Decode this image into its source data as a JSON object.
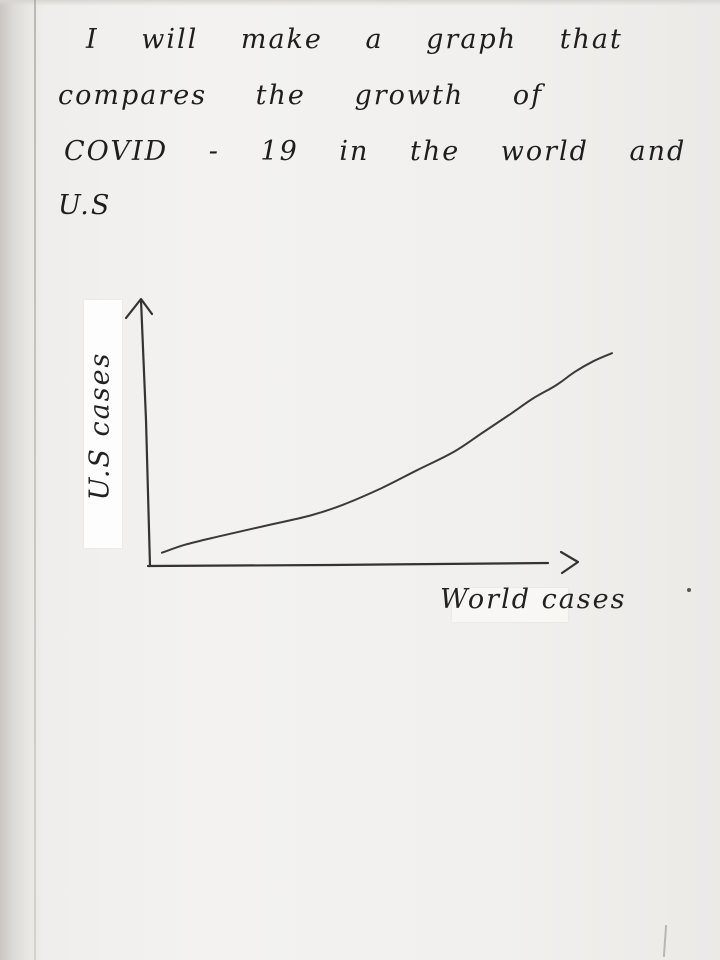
{
  "note": {
    "lines": [
      "I will make a graph that",
      "compares the growth of",
      "COVID - 19 in the world and",
      "U.S"
    ]
  },
  "chart_data": {
    "type": "line",
    "title": "",
    "xlabel": "World cases",
    "ylabel": "U.S cases",
    "grid": false,
    "legend": "none",
    "x_ticks": [],
    "y_ticks": [],
    "xlim": [
      0,
      100
    ],
    "ylim": [
      0,
      100
    ],
    "series": [
      {
        "x": [
          3,
          8,
          15,
          25,
          35,
          42,
          50,
          58,
          66,
          72,
          78,
          83,
          88,
          92,
          96,
          100
        ],
        "y": [
          5,
          8,
          11,
          15,
          19,
          23,
          29,
          36,
          43,
          50,
          57,
          63,
          68,
          73,
          77,
          80
        ]
      }
    ]
  },
  "colors": {
    "ink": "#3a3a3a",
    "paper": "#f2f1ef"
  }
}
